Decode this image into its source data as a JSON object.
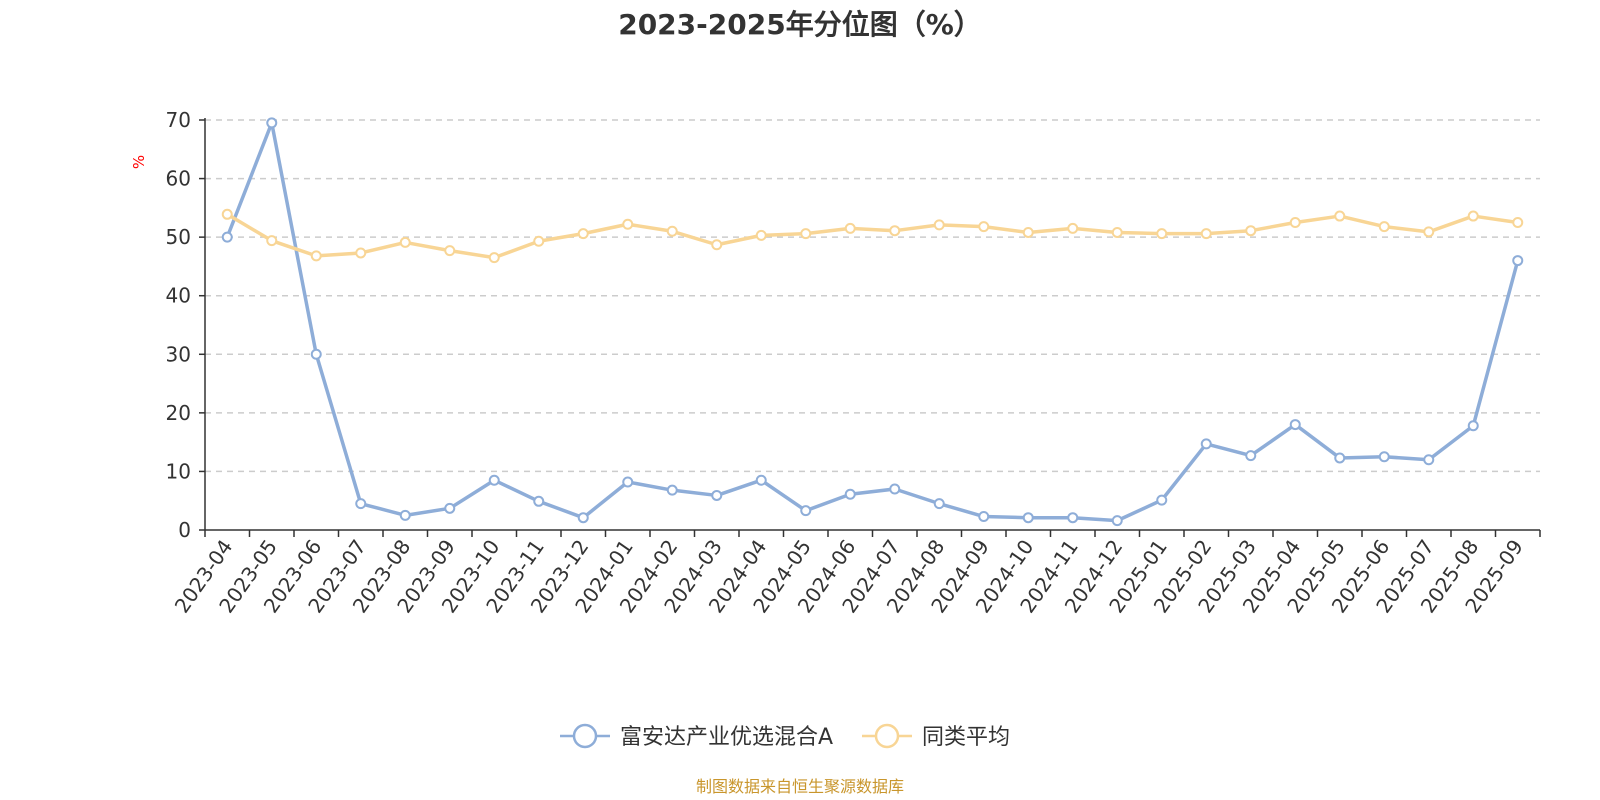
{
  "chart_data": {
    "type": "line",
    "title": "2023-2025年分位图（%）",
    "ylabel": "%",
    "ylim": [
      0,
      70
    ],
    "yticks": [
      0,
      10,
      20,
      30,
      40,
      50,
      60,
      70
    ],
    "grid": true,
    "legend_position": "bottom",
    "categories": [
      "2023-04",
      "2023-05",
      "2023-06",
      "2023-07",
      "2023-08",
      "2023-09",
      "2023-10",
      "2023-11",
      "2023-12",
      "2024-01",
      "2024-02",
      "2024-03",
      "2024-04",
      "2024-05",
      "2024-06",
      "2024-07",
      "2024-08",
      "2024-09",
      "2024-10",
      "2024-11",
      "2024-12",
      "2025-01",
      "2025-02",
      "2025-03",
      "2025-04",
      "2025-05",
      "2025-06",
      "2025-07",
      "2025-08",
      "2025-09"
    ],
    "series": [
      {
        "name": "富安达产业优选混合A",
        "color": "#8eadd8",
        "values": [
          50,
          69.5,
          30,
          4.5,
          2.5,
          3.7,
          8.5,
          4.9,
          2.1,
          8.2,
          6.8,
          5.9,
          8.5,
          3.3,
          6.1,
          7.0,
          4.5,
          2.3,
          2.1,
          2.1,
          1.6,
          5.1,
          14.7,
          12.7,
          18.0,
          12.3,
          12.5,
          12.0,
          17.8,
          46.0
        ]
      },
      {
        "name": "同类平均",
        "color": "#f8d595",
        "values": [
          53.9,
          49.4,
          46.8,
          47.3,
          49.1,
          47.7,
          46.5,
          49.3,
          50.6,
          52.2,
          51.0,
          48.7,
          50.3,
          50.6,
          51.5,
          51.1,
          52.1,
          51.8,
          50.8,
          51.5,
          50.8,
          50.6,
          50.6,
          51.1,
          52.5,
          53.6,
          51.8,
          50.9,
          53.6,
          52.5
        ]
      }
    ]
  },
  "source_text": "制图数据来自恒生聚源数据库",
  "colors": {
    "axis": "#333333",
    "grid": "#cccccc",
    "source": "#c9962c",
    "unit": "#ff0000"
  }
}
